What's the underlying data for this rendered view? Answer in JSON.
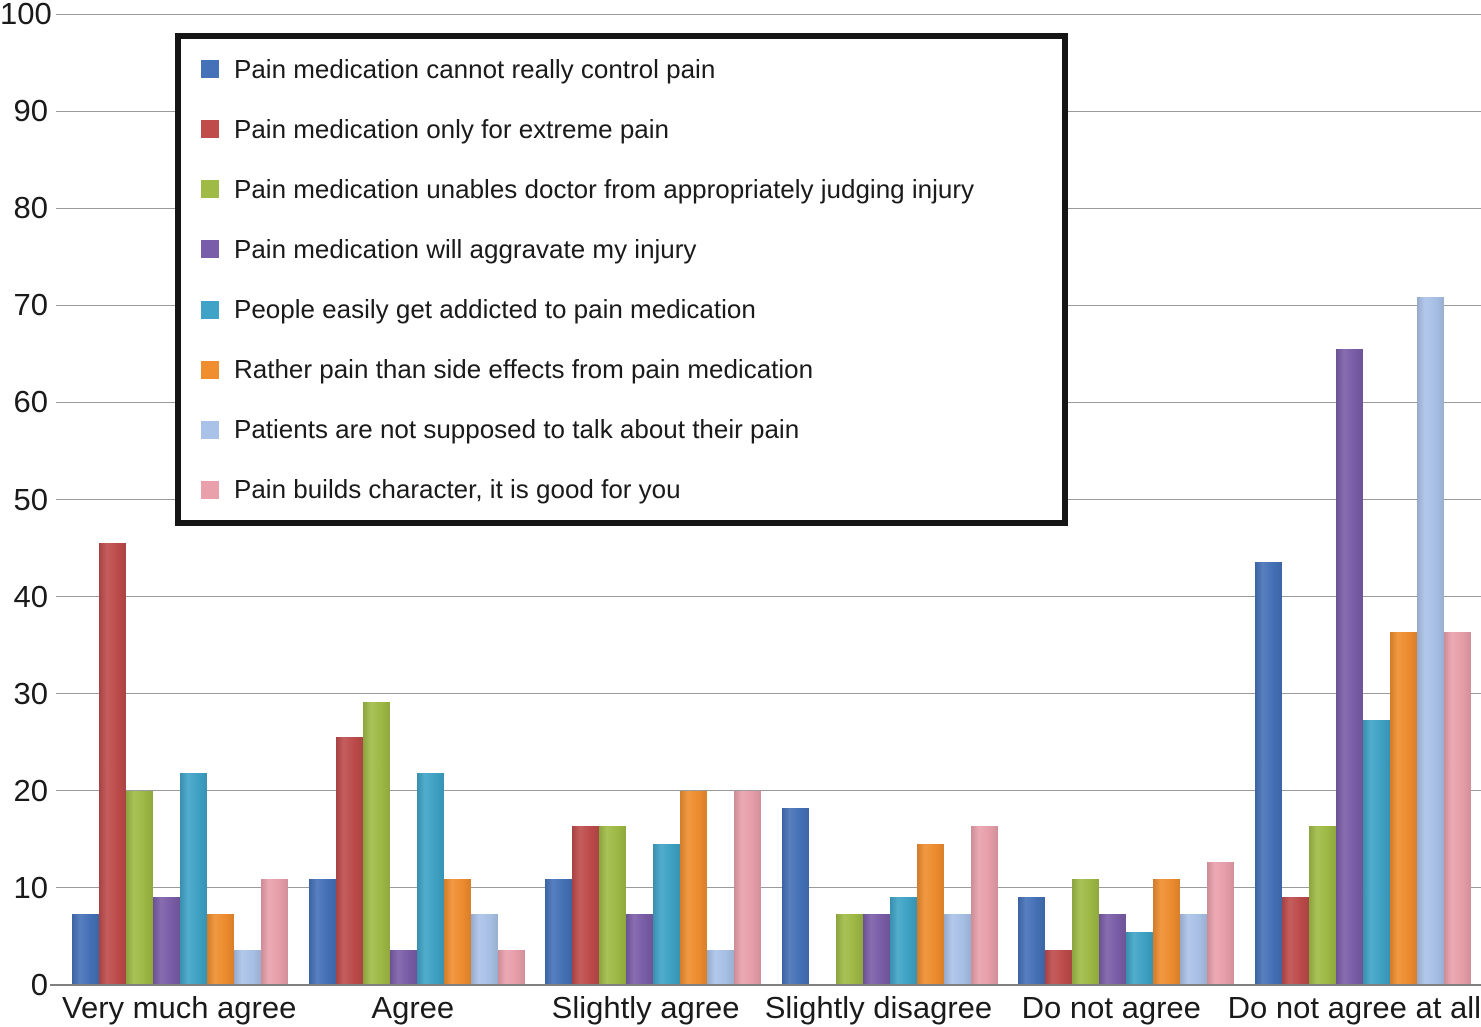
{
  "chart_data": {
    "type": "bar",
    "title": "",
    "xlabel": "",
    "ylabel": "",
    "ylim": [
      0,
      100
    ],
    "ytick_step": 10,
    "grid": true,
    "legend_position": "overlay top-left, white box with black border",
    "gridline_color": "#9b9b9b",
    "axis_color": "#7f7f7f",
    "text_color": "#1a1a1a",
    "categories": [
      "Very much agree",
      "Agree",
      "Slightly agree",
      "Slightly disagree",
      "Do not agree",
      "Do not agree at all"
    ],
    "series": [
      {
        "name": "Pain medication cannot really control pain",
        "color": "#4471B8",
        "values": [
          7.3,
          10.9,
          10.9,
          18.2,
          9.1,
          43.6
        ]
      },
      {
        "name": "Pain medication only for extreme pain",
        "color": "#BF4B4B",
        "values": [
          45.5,
          25.5,
          16.4,
          0,
          3.6,
          9.1
        ]
      },
      {
        "name": "Pain medication unables doctor from appropriately judging injury",
        "color": "#9FBB45",
        "values": [
          20,
          29.1,
          16.4,
          7.3,
          10.9,
          16.4
        ]
      },
      {
        "name": "Pain medication will aggravate my injury",
        "color": "#7A5DA8",
        "values": [
          9.1,
          3.6,
          7.3,
          7.3,
          7.3,
          65.5
        ]
      },
      {
        "name": "People easily get addicted to pain medication",
        "color": "#3EA3C6",
        "values": [
          21.8,
          21.8,
          14.5,
          9.1,
          5.5,
          27.3
        ]
      },
      {
        "name": "Rather pain than side effects from pain medication",
        "color": "#F08D2E",
        "values": [
          7.3,
          10.9,
          20,
          14.5,
          10.9,
          36.4
        ]
      },
      {
        "name": "Patients are not supposed to talk about their pain",
        "color": "#AAC2E8",
        "values": [
          3.6,
          7.3,
          3.6,
          7.3,
          7.3,
          70.9
        ]
      },
      {
        "name": "Pain builds character, it is good for you",
        "color": "#E9A0AB",
        "values": [
          10.9,
          3.6,
          20,
          16.4,
          12.7,
          36.4
        ]
      }
    ]
  }
}
